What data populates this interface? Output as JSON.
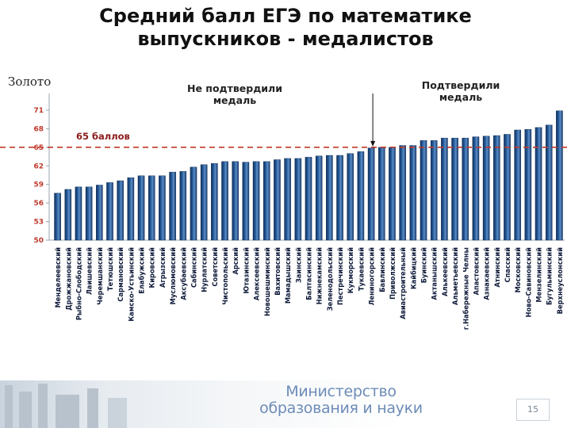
{
  "title_line1": "Средний балл ЕГЭ по математике",
  "title_line2": "выпускников - медалистов",
  "gold_label": "Золото",
  "note_not_confirmed": [
    "Не подтвердили",
    "медаль"
  ],
  "note_confirmed": [
    "Подтвердили",
    "медаль"
  ],
  "footer": {
    "ministry_line1": "Министерство",
    "ministry_line2": "образования и науки",
    "page_number": "15"
  },
  "colors": {
    "bar": "#1f4f8a",
    "bar_light": "#5f8fc6",
    "threshold": "#c0392b",
    "threshold_label": "#8b1a1a",
    "tick": "#c0392b"
  },
  "chart_data": {
    "type": "bar",
    "title": "Средний балл ЕГЭ по математике выпускников - медалистов",
    "ylim": [
      50,
      74
    ],
    "yticks": [
      50,
      53,
      56,
      59,
      62,
      65,
      68,
      71
    ],
    "threshold": {
      "value": 65,
      "label": "65 баллов"
    },
    "divider_after_index": 30,
    "categories": [
      "Менделеевский",
      "Дрожжановский",
      "Рыбно-Слободский",
      "Лаишевский",
      "Черемшанский",
      "Тетюшский",
      "Сармановский",
      "Камско-Устьинский",
      "Елабужский",
      "Кировский",
      "Агрызский",
      "Муслюмовский",
      "Аксубаевский",
      "Сабинский",
      "Нурлатский",
      "Советский",
      "Чистопольский",
      "Арский",
      "Ютазинский",
      "Алексеевский",
      "Новошешминский",
      "Вахитовский",
      "Мамадышский",
      "Заинский",
      "Балтасинский",
      "Нижнекамский",
      "Зеленодольский",
      "Пестречинский",
      "Кукморский",
      "Тукаевский",
      "Лениногорский",
      "Бавлинский",
      "Приволжский",
      "Авиастроительный",
      "Кайбицкий",
      "Буинский",
      "Актанышский",
      "Алькеевский",
      "Альметьевский",
      "г.Набережные Челны",
      "Апастовский",
      "Азнакаевский",
      "Атнинский",
      "Спасский",
      "Московский",
      "Ново-Савиновский",
      "Мензелинский",
      "Бугульминский",
      "Верхнеуслонский"
    ],
    "values": [
      57.6,
      58.2,
      58.6,
      58.6,
      58.9,
      59.3,
      59.6,
      60.1,
      60.4,
      60.4,
      60.4,
      61.0,
      61.1,
      61.8,
      62.2,
      62.4,
      62.7,
      62.7,
      62.6,
      62.7,
      62.7,
      63.0,
      63.2,
      63.2,
      63.4,
      63.6,
      63.7,
      63.7,
      64.0,
      64.3,
      64.9,
      65.0,
      65.0,
      65.3,
      65.3,
      66.1,
      66.1,
      66.5,
      66.5,
      66.5,
      66.7,
      66.8,
      66.9,
      67.1,
      67.8,
      67.9,
      68.2,
      68.6,
      70.9
    ]
  }
}
